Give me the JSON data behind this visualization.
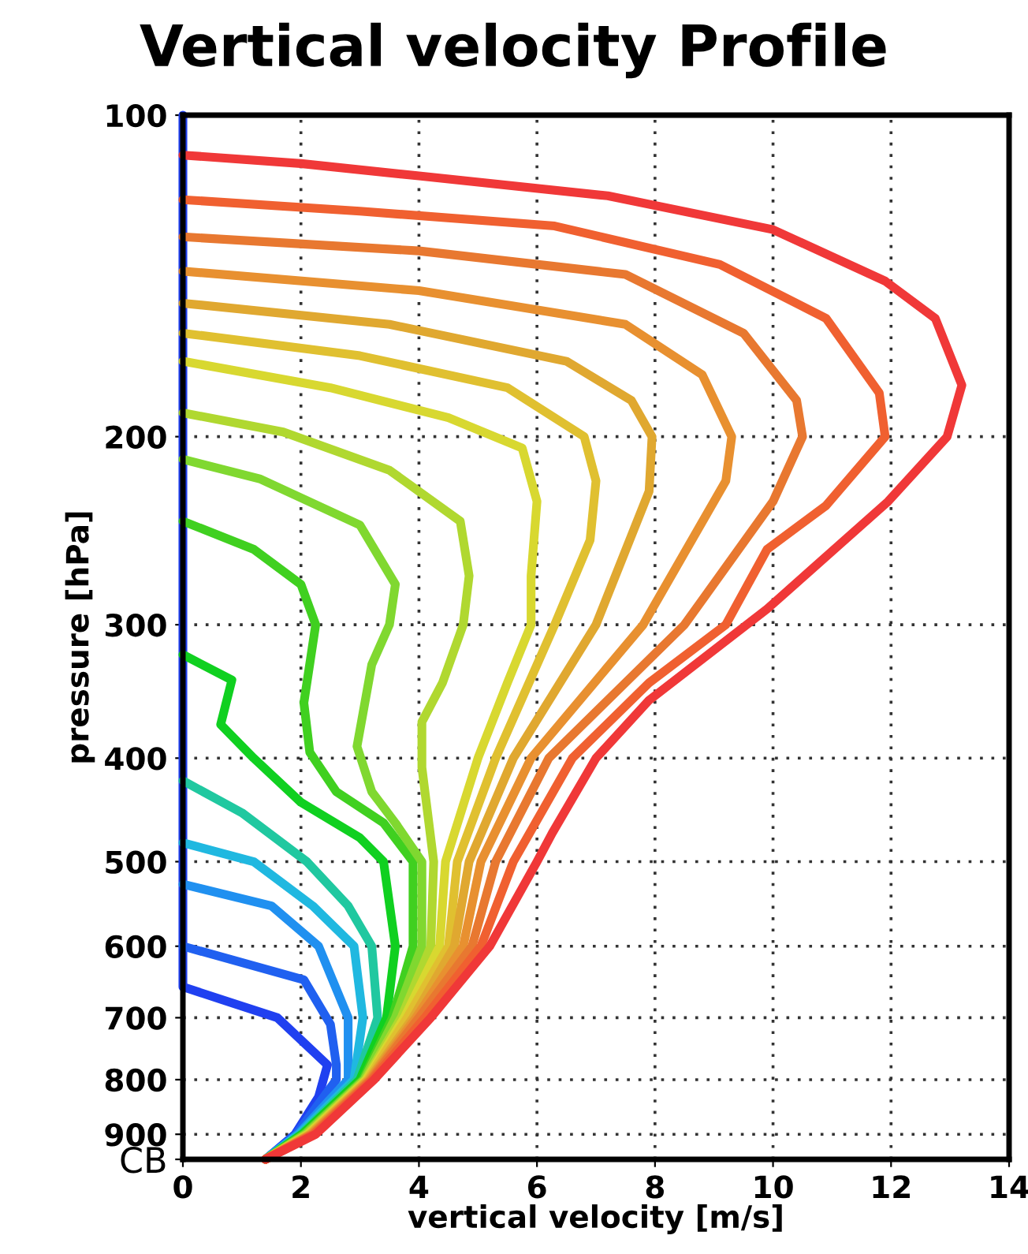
{
  "chart_data": {
    "type": "line",
    "title": "Vertical velocity Profile",
    "xlabel": "vertical velocity [m/s]",
    "ylabel": "pressure [hPa]",
    "xlim": [
      0,
      14
    ],
    "xticks": [
      0,
      2,
      4,
      6,
      8,
      10,
      12,
      14
    ],
    "ylim": [
      950,
      100
    ],
    "log": "y",
    "yticks": [
      100,
      200,
      300,
      400,
      500,
      600,
      700,
      800,
      900,
      {
        "value": 950,
        "label": "CB"
      }
    ],
    "grid": true,
    "marker": "none",
    "line_style": "solid",
    "series": [
      {
        "color": "#2040f0",
        "x": [
          0,
          0,
          1.6,
          2.45,
          2.3,
          1.9,
          1.4
        ],
        "values": [
          100,
          655,
          700,
          775,
          830,
          900,
          950
        ]
      },
      {
        "color": "#2060f0",
        "x": [
          0,
          2.05,
          2.5,
          2.6,
          2.6,
          1.92,
          1.4
        ],
        "values": [
          600,
          645,
          710,
          775,
          800,
          900,
          950
        ]
      },
      {
        "color": "#2090f0",
        "x": [
          0,
          1.5,
          2.3,
          2.8,
          2.8,
          1.95,
          1.4
        ],
        "values": [
          525,
          550,
          600,
          700,
          800,
          900,
          950
        ]
      },
      {
        "color": "#20b8e0",
        "x": [
          0,
          1.2,
          2.2,
          2.9,
          3.05,
          2.9,
          1.97,
          1.4
        ],
        "values": [
          480,
          500,
          550,
          600,
          700,
          800,
          900,
          950
        ]
      },
      {
        "color": "#20c8a0",
        "x": [
          0,
          1.0,
          2.1,
          2.8,
          3.2,
          3.3,
          2.95,
          2.0,
          1.4
        ],
        "values": [
          420,
          450,
          500,
          550,
          600,
          700,
          800,
          900,
          950
        ]
      },
      {
        "color": "#10d020",
        "x": [
          0,
          0.83,
          0.64,
          1.2,
          2.0,
          3.0,
          3.4,
          3.6,
          3.45,
          3.0,
          2.02,
          1.4
        ],
        "values": [
          320,
          338,
          372,
          400,
          440,
          475,
          500,
          600,
          700,
          800,
          900,
          950
        ]
      },
      {
        "color": "#40d020",
        "x": [
          0,
          1.2,
          2.0,
          2.25,
          2.05,
          2.15,
          2.6,
          3.4,
          3.9,
          3.9,
          3.55,
          3.05,
          2.05,
          1.4
        ],
        "values": [
          240,
          255,
          275,
          300,
          355,
          395,
          430,
          460,
          500,
          600,
          700,
          800,
          900,
          950
        ]
      },
      {
        "color": "#80d830",
        "x": [
          0,
          1.3,
          3.0,
          3.6,
          3.5,
          3.2,
          2.95,
          3.2,
          3.6,
          4.05,
          4.05,
          3.6,
          3.07,
          2.07,
          1.4
        ],
        "values": [
          210,
          219,
          242,
          275,
          300,
          327,
          390,
          430,
          460,
          500,
          600,
          700,
          800,
          900,
          950
        ]
      },
      {
        "color": "#b0d830",
        "x": [
          0,
          1.7,
          3.5,
          4.7,
          4.85,
          4.75,
          4.4,
          4.05,
          4.05,
          4.25,
          4.2,
          3.7,
          3.09,
          2.1,
          1.4
        ],
        "values": [
          190,
          198,
          215,
          240,
          270,
          300,
          340,
          370,
          408,
          500,
          600,
          700,
          800,
          900,
          950
        ]
      },
      {
        "color": "#d8d830",
        "x": [
          0,
          2.5,
          4.5,
          5.75,
          6.0,
          5.9,
          5.9,
          5.5,
          5.0,
          4.45,
          4.35,
          3.75,
          3.11,
          2.12,
          1.4
        ],
        "values": [
          170,
          180,
          192,
          205,
          230,
          270,
          300,
          340,
          400,
          500,
          600,
          700,
          800,
          900,
          950
        ]
      },
      {
        "color": "#e0c030",
        "x": [
          0,
          3,
          5.5,
          6.8,
          7.0,
          6.9,
          6.3,
          5.3,
          4.65,
          4.5,
          3.8,
          3.13,
          2.14,
          1.4
        ],
        "values": [
          160,
          168,
          180,
          200,
          220,
          250,
          300,
          400,
          500,
          600,
          700,
          800,
          900,
          950
        ]
      },
      {
        "color": "#e0a830",
        "x": [
          0,
          3.5,
          6.5,
          7.6,
          7.95,
          7.9,
          7.0,
          5.6,
          4.85,
          4.6,
          3.9,
          3.15,
          2.16,
          1.4
        ],
        "values": [
          150,
          157,
          170,
          185,
          200,
          225,
          300,
          400,
          500,
          600,
          700,
          800,
          900,
          950
        ]
      },
      {
        "color": "#e89030",
        "x": [
          0,
          4,
          7.5,
          8.8,
          9.3,
          9.2,
          7.8,
          5.9,
          5.05,
          4.75,
          3.95,
          3.17,
          2.18,
          1.4
        ],
        "values": [
          140,
          146,
          157,
          175,
          200,
          220,
          300,
          400,
          500,
          600,
          700,
          800,
          900,
          950
        ]
      },
      {
        "color": "#e87830",
        "x": [
          0,
          4,
          7.5,
          9.5,
          10.4,
          10.5,
          10.0,
          8.5,
          6.2,
          5.3,
          4.9,
          4.0,
          3.19,
          2.2,
          1.4
        ],
        "values": [
          130,
          134,
          141,
          160,
          185,
          200,
          230,
          300,
          400,
          500,
          600,
          700,
          800,
          900,
          950
        ]
      },
      {
        "color": "#f06030",
        "x": [
          0,
          3,
          6.3,
          9.1,
          10.9,
          11.8,
          11.9,
          10.9,
          9.9,
          9.2,
          7.9,
          6.6,
          5.6,
          5.05,
          4.1,
          3.21,
          2.22,
          1.4
        ],
        "values": [
          120,
          123,
          127,
          138,
          155,
          182,
          200,
          232,
          255,
          300,
          340,
          400,
          500,
          600,
          700,
          800,
          900,
          950
        ]
      },
      {
        "color": "#f03838",
        "x": [
          0,
          2,
          4,
          7.2,
          10,
          11.9,
          12.75,
          13.2,
          12.95,
          11.95,
          9.9,
          7.9,
          7.0,
          6.26,
          6.0,
          5.2,
          4.2,
          3.24,
          2.25,
          1.4
        ],
        "values": [
          109,
          111,
          114,
          119,
          128,
          143,
          155,
          179,
          200,
          230,
          290,
          353,
          400,
          470,
          500,
          600,
          700,
          800,
          900,
          950
        ]
      }
    ]
  }
}
